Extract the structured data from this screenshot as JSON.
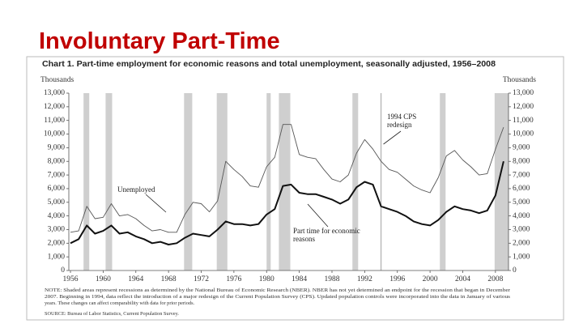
{
  "slide_title": "Involuntary Part-Time",
  "chart_data": {
    "type": "line",
    "title": "Chart 1. Part-time employment for economic reasons and total unemployment, seasonally adjusted, 1956–2008",
    "y_axis_label": "Thousands",
    "y2_axis_label": "Thousands",
    "x": [
      1956,
      1957,
      1958,
      1959,
      1960,
      1961,
      1962,
      1963,
      1964,
      1965,
      1966,
      1967,
      1968,
      1969,
      1970,
      1971,
      1972,
      1973,
      1974,
      1975,
      1976,
      1977,
      1978,
      1979,
      1980,
      1981,
      1982,
      1983,
      1984,
      1985,
      1986,
      1987,
      1988,
      1989,
      1990,
      1991,
      1992,
      1993,
      1994,
      1995,
      1996,
      1997,
      1998,
      1999,
      2000,
      2001,
      2002,
      2003,
      2004,
      2005,
      2006,
      2007,
      2008,
      2009
    ],
    "series": [
      {
        "name": "Unemployed",
        "color": "#555555",
        "width": 0.9,
        "values": [
          2800,
          2900,
          4700,
          3800,
          3900,
          4900,
          4000,
          4100,
          3800,
          3300,
          2900,
          3000,
          2800,
          2800,
          4100,
          5000,
          4900,
          4300,
          5100,
          8000,
          7400,
          6900,
          6200,
          6100,
          7600,
          8300,
          10700,
          10700,
          8500,
          8300,
          8200,
          7400,
          6700,
          6500,
          7000,
          8600,
          9600,
          8900,
          8000,
          7400,
          7200,
          6700,
          6200,
          5900,
          5700,
          6800,
          8400,
          8800,
          8100,
          7600,
          7000,
          7100,
          8900,
          10500
        ]
      },
      {
        "name": "Part time for economic reasons",
        "color": "#111111",
        "width": 2,
        "values": [
          2000,
          2300,
          3300,
          2700,
          2900,
          3300,
          2700,
          2800,
          2500,
          2300,
          2000,
          2100,
          1900,
          2000,
          2400,
          2700,
          2600,
          2500,
          3000,
          3600,
          3400,
          3400,
          3300,
          3400,
          4100,
          4500,
          6200,
          6300,
          5700,
          5600,
          5600,
          5400,
          5200,
          4900,
          5200,
          6100,
          6500,
          6300,
          4700,
          4500,
          4300,
          4000,
          3600,
          3400,
          3300,
          3700,
          4300,
          4700,
          4500,
          4400,
          4200,
          4400,
          5500,
          8000
        ]
      }
    ],
    "xlim": [
      1955.8,
      2009.6
    ],
    "ylim": [
      0,
      13000
    ],
    "y2lim": [
      0,
      13000
    ],
    "xticks": [
      1956,
      1960,
      1964,
      1968,
      1972,
      1976,
      1980,
      1984,
      1988,
      1992,
      1996,
      2000,
      2004,
      2008
    ],
    "yticks": [
      0,
      {
        "value": 1000,
        "label": "1,000"
      },
      {
        "value": 2000,
        "label": "2,000"
      },
      {
        "value": 3000,
        "label": "3,000"
      },
      {
        "value": 4000,
        "label": "4,000"
      },
      {
        "value": 5000,
        "label": "5,000"
      },
      {
        "value": 6000,
        "label": "6,000"
      },
      {
        "value": 7000,
        "label": "7,000"
      },
      {
        "value": 8000,
        "label": "8,000"
      },
      {
        "value": 9000,
        "label": "9,000"
      },
      {
        "value": 10000,
        "label": "10,000"
      },
      {
        "value": 11000,
        "label": "11,000"
      },
      {
        "value": 12000,
        "label": "12,000"
      },
      {
        "value": 13000,
        "label": "13,000"
      }
    ],
    "recessions": [
      [
        1957.6,
        1958.3
      ],
      [
        1960.3,
        1961.1
      ],
      [
        1969.9,
        1970.9
      ],
      [
        1973.9,
        1975.2
      ],
      [
        1980.0,
        1980.5
      ],
      [
        1981.5,
        1982.9
      ],
      [
        1990.5,
        1991.2
      ],
      [
        2001.2,
        2001.9
      ],
      [
        2007.9,
        2009.6
      ]
    ],
    "redesign_year": 1994,
    "annotations": {
      "unemployed": "Unemployed",
      "part_time": [
        "Part time for economic",
        "reasons"
      ],
      "redesign": [
        "1994 CPS",
        "redesign"
      ]
    },
    "note": [
      "NOTE: Shaded areas represent recessions as determined by the National Bureau of Economic Research (NBER). NBER has not yet determined an endpoint for the recession that began in December",
      "2007. Beginning in 1994, data reflect the introduction of a major redesign of the Current Population Survey (CPS). Updated population controls were incorporated into the data in January of various",
      "years. These changes can affect comparability with data for prior periods."
    ],
    "source": "SOURCE: Bureau of Labor Statistics, Current Population Survey."
  }
}
